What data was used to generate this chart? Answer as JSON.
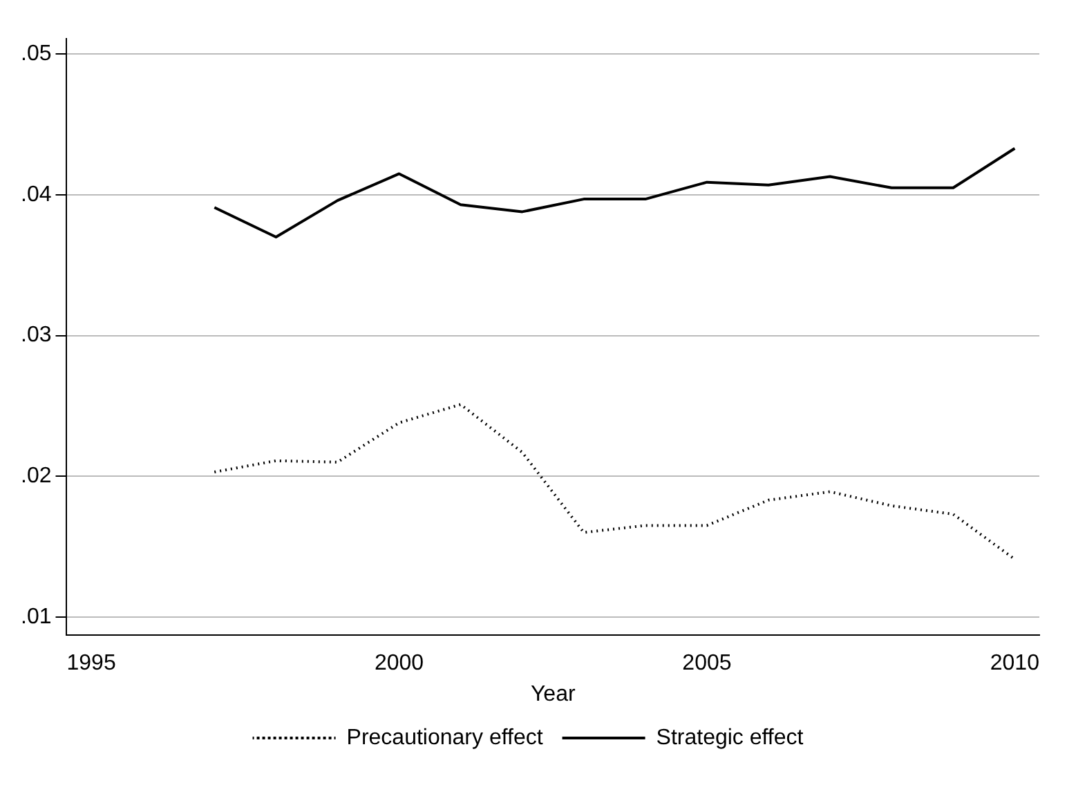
{
  "chart_data": {
    "type": "line",
    "xlabel": "Year",
    "x": [
      1997,
      1998,
      1999,
      2000,
      2001,
      2002,
      2003,
      2004,
      2005,
      2006,
      2007,
      2008,
      2009,
      2010
    ],
    "series": [
      {
        "name": "Precautionary effect",
        "color": "#000000",
        "line_style": "dotted",
        "values": [
          0.0203,
          0.0211,
          0.021,
          0.0238,
          0.0251,
          0.0217,
          0.016,
          0.0165,
          0.0165,
          0.0183,
          0.0189,
          0.0179,
          0.0173,
          0.0141
        ]
      },
      {
        "name": "Strategic effect",
        "color": "#000000",
        "line_style": "solid",
        "values": [
          0.0391,
          0.037,
          0.0396,
          0.0415,
          0.0393,
          0.0388,
          0.0397,
          0.0397,
          0.0409,
          0.0407,
          0.0413,
          0.0405,
          0.0405,
          0.0433
        ]
      }
    ],
    "xlim": [
      1994.6,
      2010.4
    ],
    "xticks": [
      1995,
      2000,
      2005,
      2010
    ],
    "ylim": [
      0.0087,
      0.0511
    ],
    "yticks": [
      {
        "value": 0.01,
        "label": ".01"
      },
      {
        "value": 0.02,
        "label": ".02"
      },
      {
        "value": 0.03,
        "label": ".03"
      },
      {
        "value": 0.04,
        "label": ".04"
      },
      {
        "value": 0.05,
        "label": ".05"
      }
    ],
    "grid": "y",
    "legend": "bottom",
    "marker": "none"
  }
}
